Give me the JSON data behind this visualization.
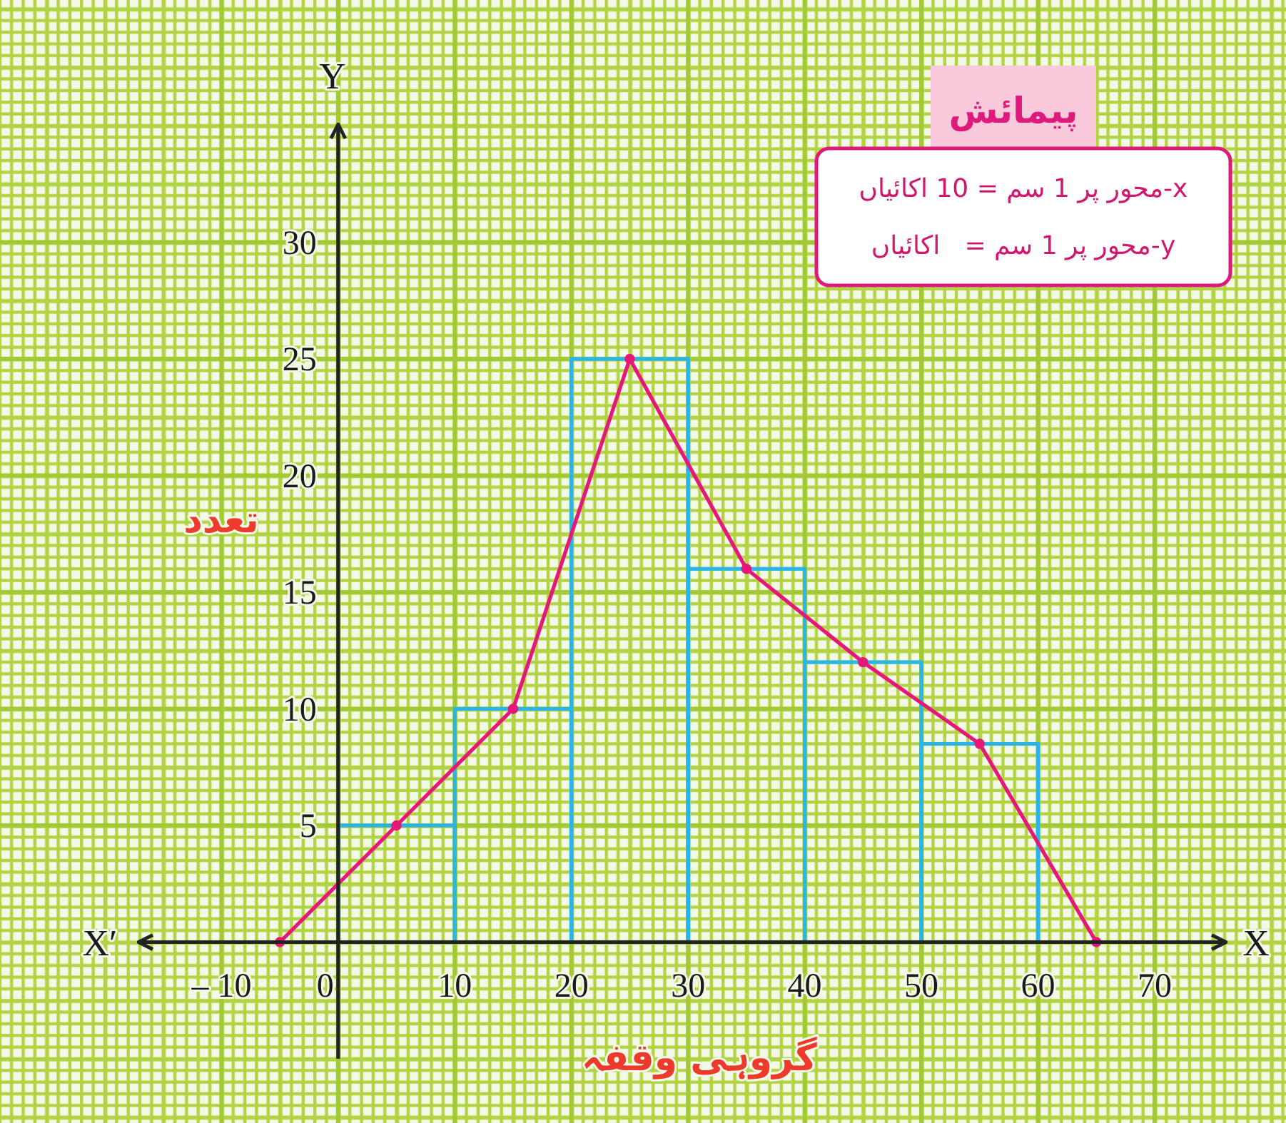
{
  "chart_data": {
    "type": "histogram",
    "title": "پیمائش",
    "xlabel": "گروہی وقفہ",
    "ylabel": "تعدد",
    "annotations": [
      "X′",
      "X",
      "Y",
      "x-محور پر 1 سم = 10 اکائیاں",
      "y-محور پر 1 سم =   اکائیاں"
    ],
    "series": [
      {
        "bins": [
          0,
          10,
          20,
          30,
          40,
          50,
          60
        ],
        "values": [
          5,
          10,
          25,
          16,
          12,
          8.5
        ],
        "color": "#29b5e8"
      },
      {
        "type": "line",
        "x": [
          -5,
          5,
          15,
          25,
          35,
          45,
          55,
          65
        ],
        "values": [
          0,
          5,
          10,
          25,
          16,
          12,
          8.5,
          0
        ],
        "color": "#e5177b"
      }
    ],
    "marker": "circle",
    "xlim": [
      -17,
      76
    ],
    "ylim": [
      -5,
      35
    ],
    "xticks": [
      {
        "value": -10,
        "label": "– 10"
      },
      0,
      10,
      20,
      30,
      40,
      50,
      60,
      70
    ],
    "yticks": [
      5,
      10,
      15,
      20,
      25,
      30
    ],
    "grid": true
  }
}
